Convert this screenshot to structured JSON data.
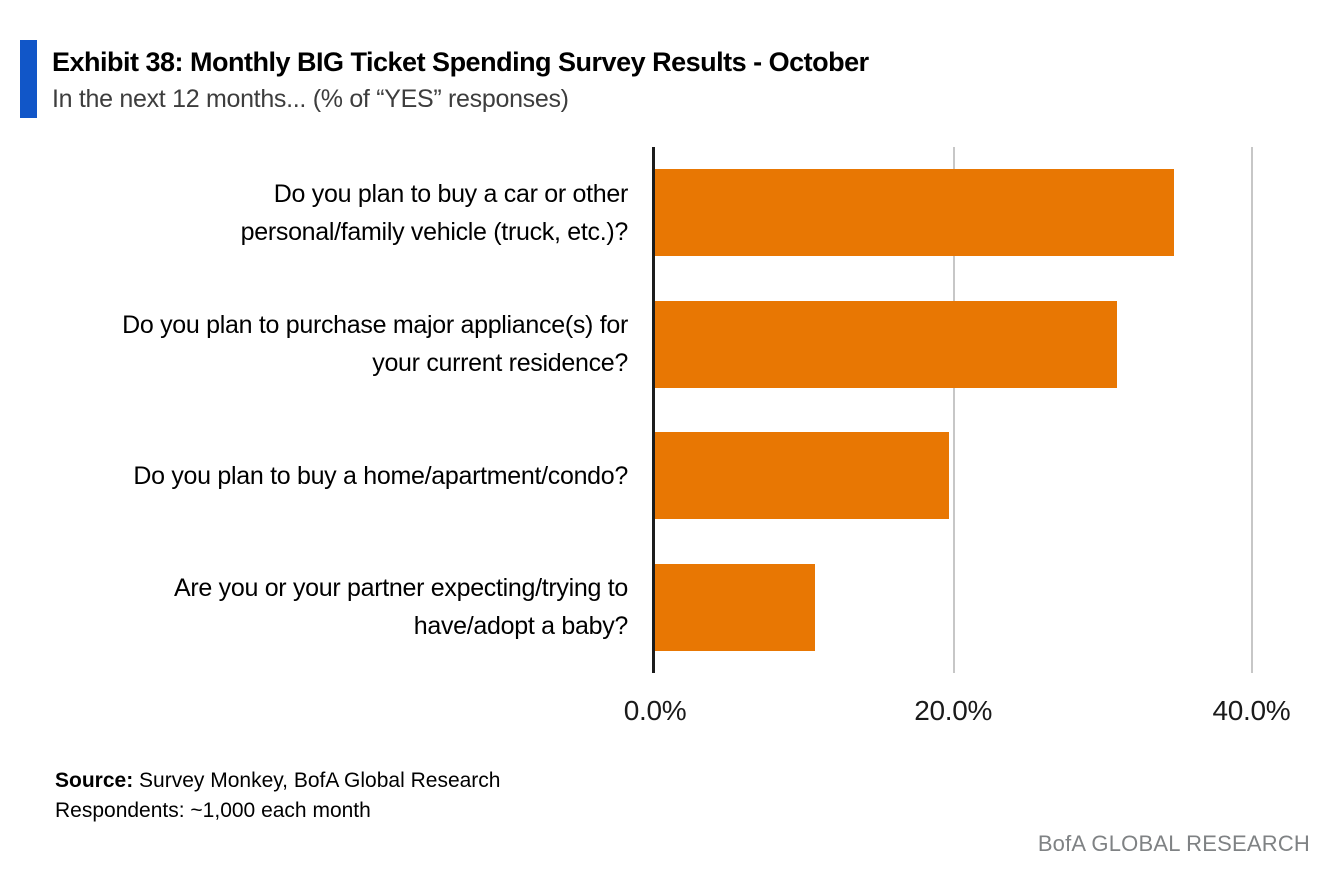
{
  "header": {
    "title": "Exhibit 38: Monthly BIG Ticket Spending Survey Results - October",
    "subtitle": "In the next 12 months... (% of “YES” responses)",
    "accent_color": "#1156C8"
  },
  "chart_data": {
    "type": "bar",
    "orientation": "horizontal",
    "title": "Exhibit 38: Monthly BIG Ticket Spending Survey Results - October",
    "subtitle": "In the next 12 months... (% of “YES” responses)",
    "categories": [
      "Do you plan to buy a car or other\npersonal/family vehicle (truck, etc.)?",
      "Do you plan to purchase major appliance(s) for\nyour current residence?",
      "Do you plan to buy a home/apartment/condo?",
      "Are you or your partner expecting/trying to\nhave/adopt a baby?"
    ],
    "values": [
      34.8,
      31.0,
      19.7,
      10.7
    ],
    "value_unit": "%",
    "x_ticks": [
      "0.0%",
      "20.0%",
      "40.0%"
    ],
    "x_tick_values": [
      0,
      20,
      40
    ],
    "gridline_values": [
      20,
      40
    ],
    "xlim": [
      0,
      45
    ],
    "grid": "vertical",
    "legend": "none",
    "bar_color": "#E87703",
    "axis_color": "#1c1c1c",
    "gridline_color": "#c7c7c7"
  },
  "footer": {
    "source_label": "Source:",
    "source_text": " Survey Monkey, BofA Global Research",
    "respondents": "Respondents: ~1,000 each month",
    "branding": "BofA GLOBAL RESEARCH"
  }
}
